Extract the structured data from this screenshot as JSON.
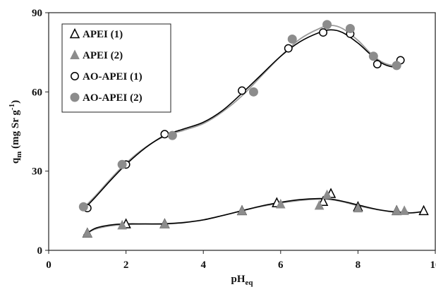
{
  "chart_data": {
    "type": "scatter",
    "x_label": {
      "main": "pH",
      "sub": "eq"
    },
    "y_label": {
      "pre": "q",
      "sub": "m",
      "post": " (mg Sr g",
      "sup": "-1",
      "close": ")"
    },
    "x_range": [
      0,
      10
    ],
    "y_range": [
      0,
      90
    ],
    "x_ticks": [
      0,
      2,
      4,
      6,
      8,
      10
    ],
    "y_ticks": [
      0,
      30,
      60,
      90
    ],
    "x_tick_labels": [
      "0",
      "2",
      "4",
      "6",
      "8",
      "10"
    ],
    "y_tick_labels": [
      "0",
      "30",
      "60",
      "90"
    ],
    "grid": false,
    "legend_position": "top-left",
    "series": [
      {
        "name": "APEI (1)",
        "marker": "triangle-open",
        "color": "#000000",
        "points": [
          [
            1.0,
            6.5
          ],
          [
            2.0,
            10.0
          ],
          [
            3.0,
            10.0
          ],
          [
            5.0,
            15.0
          ],
          [
            5.9,
            18.0
          ],
          [
            7.1,
            18.5
          ],
          [
            7.3,
            21.5
          ],
          [
            8.0,
            16.5
          ],
          [
            9.0,
            15.0
          ],
          [
            9.7,
            15.0
          ]
        ],
        "curve": [
          [
            0.9,
            5.5
          ],
          [
            1.2,
            8.3
          ],
          [
            1.6,
            9.6
          ],
          [
            2.0,
            10.0
          ],
          [
            2.5,
            10.0
          ],
          [
            3.0,
            10.0
          ],
          [
            3.5,
            10.5
          ],
          [
            4.0,
            11.5
          ],
          [
            4.5,
            13.2
          ],
          [
            5.0,
            15.0
          ],
          [
            5.5,
            16.8
          ],
          [
            6.0,
            18.2
          ],
          [
            6.5,
            19.2
          ],
          [
            7.0,
            19.6
          ],
          [
            7.3,
            19.4
          ],
          [
            7.6,
            18.6
          ],
          [
            8.0,
            17.2
          ],
          [
            8.5,
            15.5
          ],
          [
            9.0,
            14.4
          ],
          [
            9.4,
            14.2
          ],
          [
            9.7,
            14.8
          ]
        ]
      },
      {
        "name": "APEI (2)",
        "marker": "triangle-filled",
        "color": "#8c8c8c",
        "points": [
          [
            1.0,
            6.5
          ],
          [
            1.9,
            9.5
          ],
          [
            3.0,
            10.0
          ],
          [
            5.0,
            15.0
          ],
          [
            6.0,
            17.5
          ],
          [
            7.0,
            17.0
          ],
          [
            7.2,
            21.0
          ],
          [
            8.0,
            16.0
          ],
          [
            9.0,
            15.0
          ],
          [
            9.2,
            15.0
          ]
        ],
        "curve": [
          [
            0.9,
            5.8
          ],
          [
            1.2,
            8.0
          ],
          [
            1.6,
            9.3
          ],
          [
            2.0,
            9.8
          ],
          [
            2.5,
            10.0
          ],
          [
            3.0,
            10.1
          ],
          [
            3.5,
            10.6
          ],
          [
            4.0,
            11.6
          ],
          [
            4.5,
            13.2
          ],
          [
            5.0,
            15.0
          ],
          [
            5.5,
            16.6
          ],
          [
            6.0,
            17.9
          ],
          [
            6.5,
            18.9
          ],
          [
            7.0,
            19.4
          ],
          [
            7.3,
            19.2
          ],
          [
            7.6,
            18.4
          ],
          [
            8.0,
            16.9
          ],
          [
            8.5,
            15.4
          ],
          [
            9.0,
            14.6
          ],
          [
            9.3,
            14.6
          ]
        ]
      },
      {
        "name": "AO-APEI (1)",
        "marker": "circle-open",
        "color": "#000000",
        "points": [
          [
            1.0,
            16.0
          ],
          [
            2.0,
            32.5
          ],
          [
            3.0,
            44.0
          ],
          [
            5.0,
            60.5
          ],
          [
            6.2,
            76.5
          ],
          [
            7.1,
            82.5
          ],
          [
            7.8,
            82.0
          ],
          [
            8.5,
            70.5
          ],
          [
            9.1,
            72.0
          ]
        ],
        "curve": [
          [
            0.9,
            15.5
          ],
          [
            1.2,
            20.0
          ],
          [
            1.6,
            26.5
          ],
          [
            2.0,
            32.5
          ],
          [
            2.5,
            38.8
          ],
          [
            3.0,
            43.5
          ],
          [
            3.5,
            46.0
          ],
          [
            4.0,
            48.5
          ],
          [
            4.5,
            53.0
          ],
          [
            5.0,
            59.5
          ],
          [
            5.5,
            66.5
          ],
          [
            6.0,
            73.5
          ],
          [
            6.5,
            79.0
          ],
          [
            7.0,
            82.5
          ],
          [
            7.3,
            83.5
          ],
          [
            7.6,
            82.5
          ],
          [
            8.0,
            78.5
          ],
          [
            8.3,
            74.5
          ],
          [
            8.6,
            71.0
          ],
          [
            8.9,
            69.5
          ],
          [
            9.1,
            70.5
          ]
        ]
      },
      {
        "name": "AO-APEI (2)",
        "marker": "circle-filled",
        "color": "#8c8c8c",
        "points": [
          [
            0.9,
            16.5
          ],
          [
            1.9,
            32.5
          ],
          [
            3.2,
            43.5
          ],
          [
            5.3,
            60.0
          ],
          [
            6.3,
            80.0
          ],
          [
            7.2,
            85.5
          ],
          [
            7.8,
            84.0
          ],
          [
            8.4,
            73.5
          ],
          [
            9.0,
            70.0
          ]
        ],
        "curve": [
          [
            0.9,
            16.0
          ],
          [
            1.2,
            20.5
          ],
          [
            1.6,
            27.0
          ],
          [
            2.0,
            33.0
          ],
          [
            2.5,
            39.0
          ],
          [
            3.0,
            43.2
          ],
          [
            3.5,
            45.5
          ],
          [
            4.0,
            48.0
          ],
          [
            4.5,
            52.5
          ],
          [
            5.0,
            58.5
          ],
          [
            5.5,
            66.0
          ],
          [
            6.0,
            73.5
          ],
          [
            6.5,
            80.0
          ],
          [
            7.0,
            84.0
          ],
          [
            7.3,
            85.2
          ],
          [
            7.6,
            84.0
          ],
          [
            8.0,
            79.5
          ],
          [
            8.3,
            75.0
          ],
          [
            8.6,
            71.5
          ],
          [
            8.9,
            70.0
          ],
          [
            9.1,
            70.5
          ]
        ]
      }
    ]
  }
}
